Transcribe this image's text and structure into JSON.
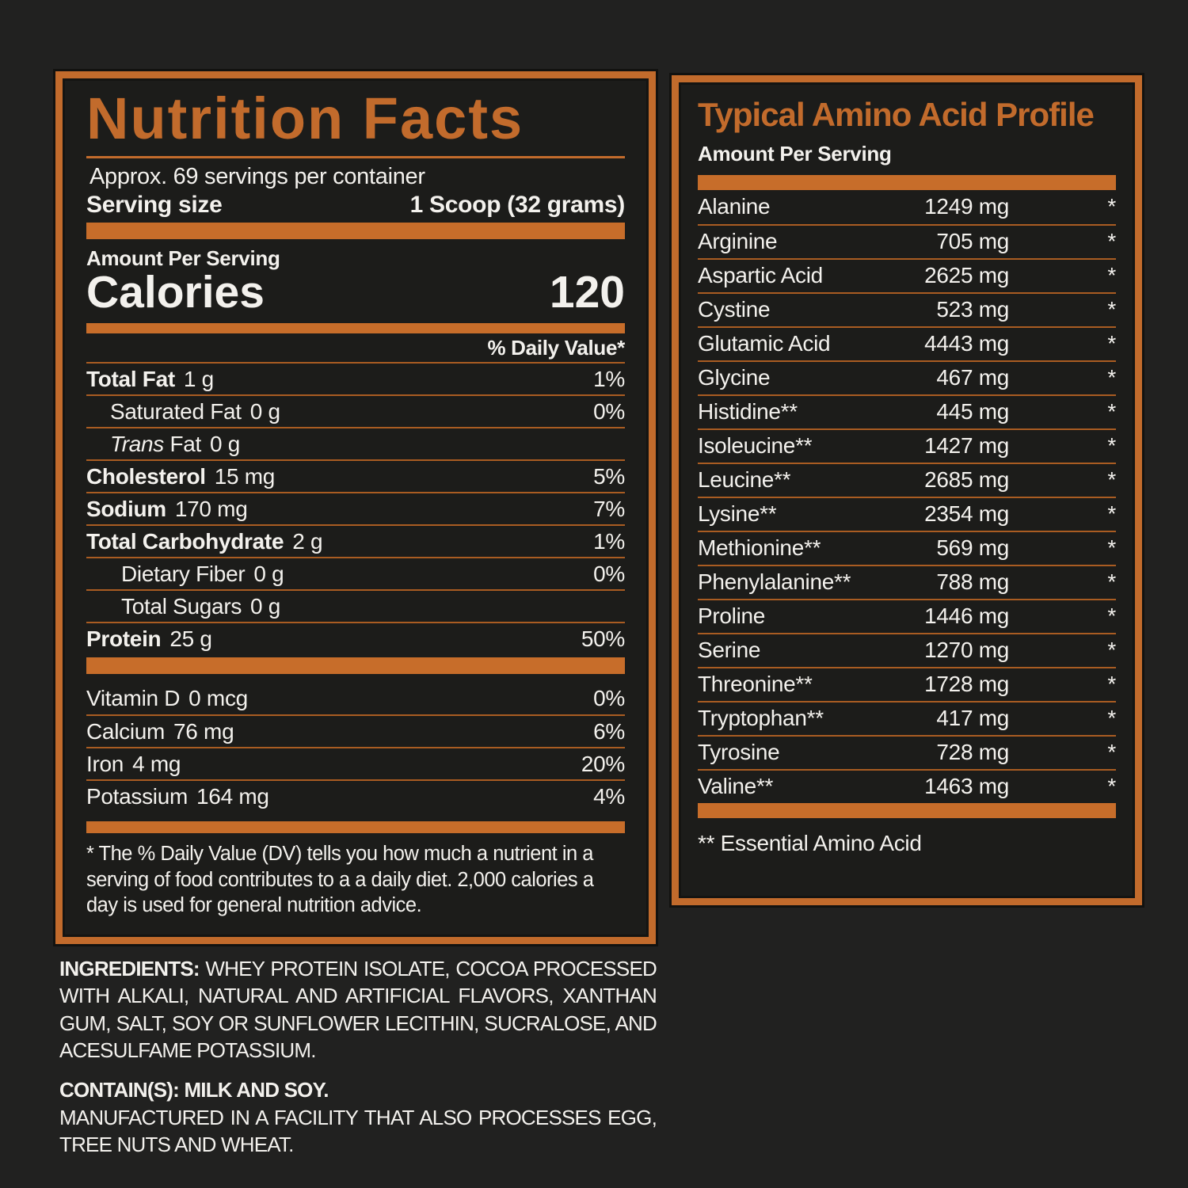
{
  "colors": {
    "accent_orange": "#c26b2c",
    "bar_orange": "#c76d2a",
    "divider_orange": "#a95c22",
    "background": "#212120",
    "panel_background": "#1c1c1a",
    "text": "#f3f1ed"
  },
  "nutrition_facts": {
    "title": "Nutrition Facts",
    "servings_per_container": "Approx. 69 servings per container",
    "serving_size_label": "Serving size",
    "serving_size_value": "1 Scoop (32 grams)",
    "amount_per_serving_label": "Amount Per Serving",
    "calories_label": "Calories",
    "calories_value": "120",
    "daily_value_header": "% Daily Value*",
    "rows": [
      {
        "prefix": "",
        "name": "Total Fat",
        "amount": "1 g",
        "dv": "1%",
        "style": "bold"
      },
      {
        "prefix": "",
        "name": "Saturated Fat",
        "amount": "0 g",
        "dv": "0%",
        "style": "indent"
      },
      {
        "prefix": "Trans",
        "name": " Fat",
        "amount": "0 g",
        "dv": "",
        "style": "indent"
      },
      {
        "prefix": "",
        "name": "Cholesterol",
        "amount": "15 mg",
        "dv": "5%",
        "style": "bold"
      },
      {
        "prefix": "",
        "name": "Sodium",
        "amount": "170 mg",
        "dv": "7%",
        "style": "bold"
      },
      {
        "prefix": "",
        "name": "Total Carbohydrate",
        "amount": "2 g",
        "dv": "1%",
        "style": "bold"
      },
      {
        "prefix": "",
        "name": "Dietary Fiber",
        "amount": "0 g",
        "dv": "0%",
        "style": "indent2"
      },
      {
        "prefix": "",
        "name": "Total Sugars",
        "amount": "0 g",
        "dv": "",
        "style": "indent2"
      },
      {
        "prefix": "",
        "name": "Protein",
        "amount": "25 g",
        "dv": "50%",
        "style": "bold"
      }
    ],
    "micronutrients": [
      {
        "prefix": "",
        "name": "Vitamin D",
        "amount": "0 mcg",
        "dv": "0%",
        "style": "nb"
      },
      {
        "prefix": "",
        "name": "Calcium",
        "amount": "76 mg",
        "dv": "6%",
        "style": ""
      },
      {
        "prefix": "",
        "name": "Iron",
        "amount": "4 mg",
        "dv": "20%",
        "style": ""
      },
      {
        "prefix": "",
        "name": "Potassium",
        "amount": "164 mg",
        "dv": "4%",
        "style": ""
      }
    ],
    "footnote": "* The % Daily Value (DV) tells you how much a nutrient in a serving of food contributes to a a daily diet. 2,000 calories a day is used for general nutrition advice."
  },
  "amino_profile": {
    "title": "Typical Amino Acid Profile",
    "amount_per_serving_label": "Amount Per Serving",
    "rows": [
      {
        "name": "Alanine",
        "amount": "1249 mg",
        "note": "*"
      },
      {
        "name": "Arginine",
        "amount": "705 mg",
        "note": "*"
      },
      {
        "name": "Aspartic Acid",
        "amount": "2625 mg",
        "note": "*"
      },
      {
        "name": "Cystine",
        "amount": "523 mg",
        "note": "*"
      },
      {
        "name": "Glutamic Acid",
        "amount": "4443 mg",
        "note": "*"
      },
      {
        "name": "Glycine",
        "amount": "467 mg",
        "note": "*"
      },
      {
        "name": "Histidine**",
        "amount": "445 mg",
        "note": "*"
      },
      {
        "name": "Isoleucine**",
        "amount": "1427 mg",
        "note": "*"
      },
      {
        "name": "Leucine**",
        "amount": "2685 mg",
        "note": "*"
      },
      {
        "name": "Lysine**",
        "amount": "2354 mg",
        "note": "*"
      },
      {
        "name": "Methionine**",
        "amount": "569 mg",
        "note": "*"
      },
      {
        "name": "Phenylalanine**",
        "amount": "788 mg",
        "note": "*"
      },
      {
        "name": "Proline",
        "amount": "1446 mg",
        "note": "*"
      },
      {
        "name": "Serine",
        "amount": "1270 mg",
        "note": "*"
      },
      {
        "name": "Threonine**",
        "amount": "1728 mg",
        "note": "*"
      },
      {
        "name": "Tryptophan**",
        "amount": "417 mg",
        "note": "*"
      },
      {
        "name": "Tyrosine",
        "amount": "728 mg",
        "note": "*"
      },
      {
        "name": "Valine**",
        "amount": "1463 mg",
        "note": "*"
      }
    ],
    "footnote": "** Essential Amino Acid"
  },
  "ingredients": {
    "label": "INGREDIENTS:",
    "text": "WHEY PROTEIN ISOLATE, COCOA PROCESSED WITH ALKALI, NATURAL AND ARTIFICIAL FLAVORS, XANTHAN GUM, SALT, SOY OR SUNFLOWER LECITHIN, SUCRALOSE, AND ACESULFAME POTASSIUM.",
    "contains": "CONTAIN(S): MILK AND SOY.",
    "manufactured": "MANUFACTURED IN A FACILITY THAT ALSO PROCESSES EGG, TREE NUTS AND WHEAT."
  }
}
